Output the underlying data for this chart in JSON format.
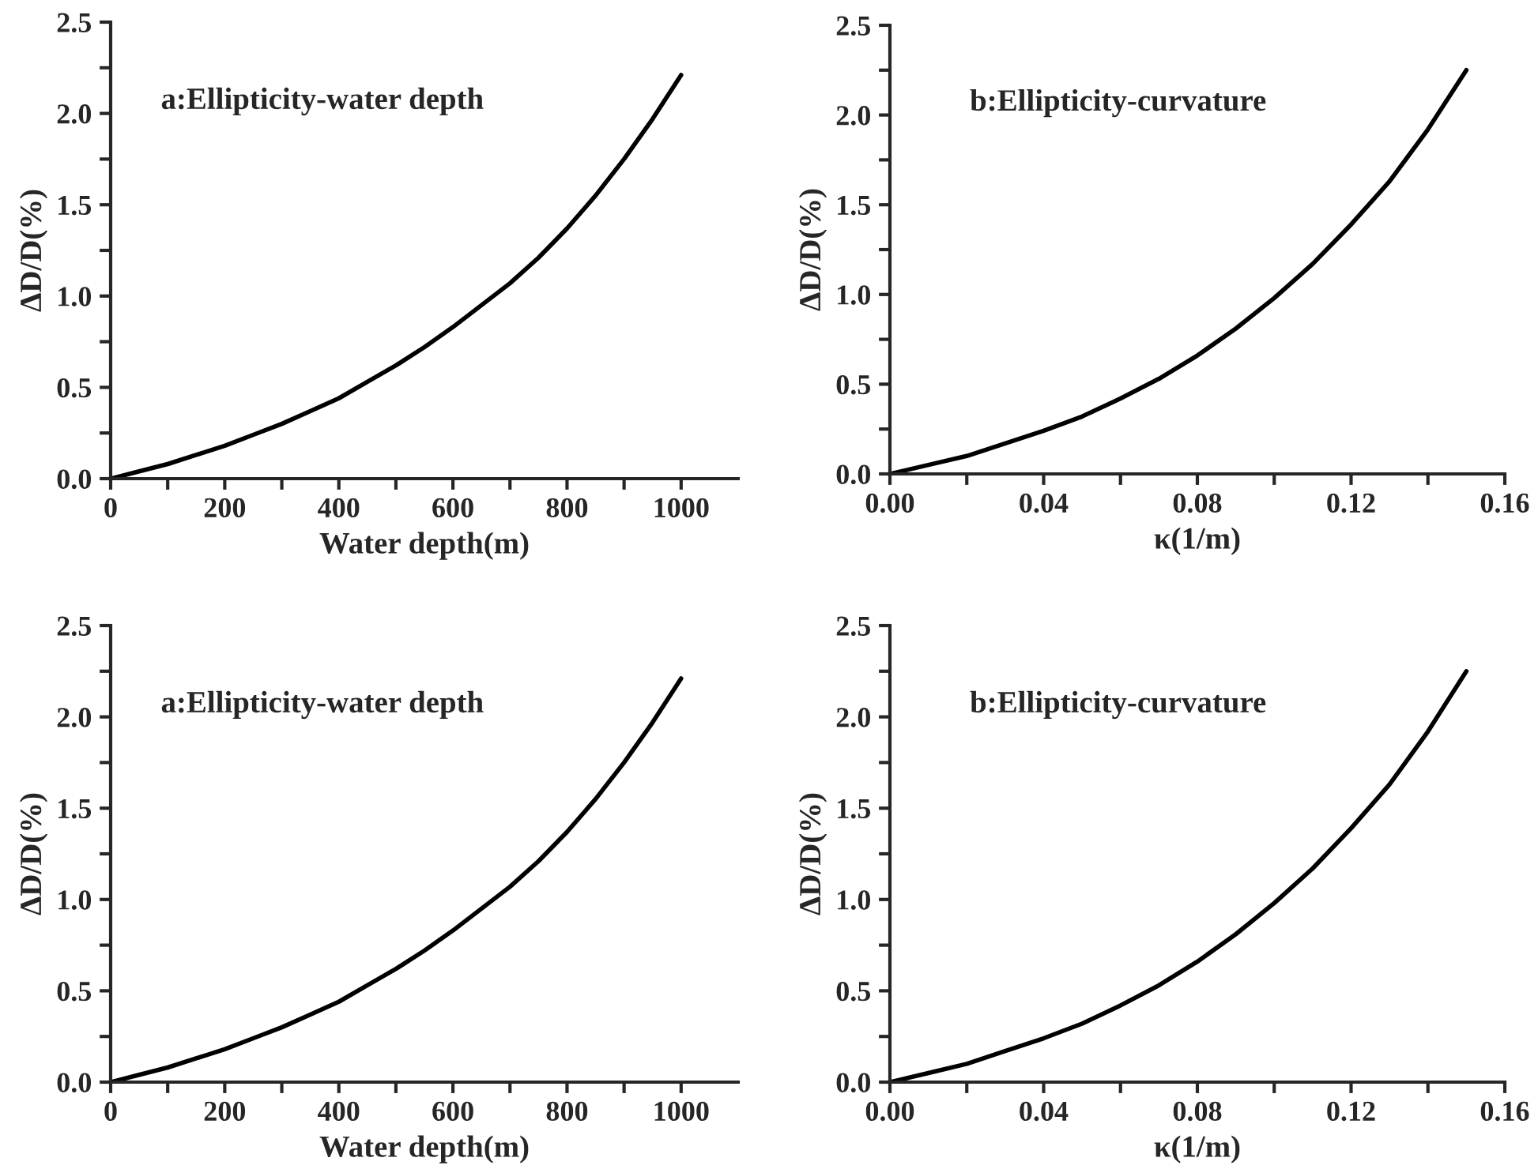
{
  "chart_data": [
    {
      "type": "line",
      "xlabel": "Water depth(m)",
      "ylabel": "ΔD/D(%)",
      "annotations": [
        "a:Ellipticity-water depth"
      ],
      "x": [
        0,
        50,
        100,
        150,
        200,
        250,
        300,
        350,
        400,
        450,
        500,
        550,
        600,
        650,
        700,
        750,
        800,
        850,
        900,
        950,
        1000
      ],
      "series": [
        {
          "color": "#000000",
          "values": [
            0,
            0.04,
            0.08,
            0.13,
            0.18,
            0.24,
            0.3,
            0.37,
            0.44,
            0.53,
            0.62,
            0.72,
            0.83,
            0.95,
            1.07,
            1.21,
            1.37,
            1.55,
            1.75,
            1.97,
            2.21
          ]
        }
      ],
      "xlim": [
        0,
        1100
      ],
      "xticks": [
        0,
        {
          "value": 100,
          "label": null
        },
        200,
        {
          "value": 300,
          "label": null
        },
        400,
        {
          "value": 500,
          "label": null
        },
        600,
        {
          "value": 700,
          "label": null
        },
        800,
        {
          "value": 900,
          "label": null
        },
        1000
      ],
      "ylim": [
        0,
        2.5
      ],
      "yticks": [
        {
          "value": 0,
          "label": "0.0"
        },
        {
          "value": 0.25,
          "label": null
        },
        {
          "value": 0.5,
          "label": "0.5"
        },
        {
          "value": 0.75,
          "label": null
        },
        {
          "value": 1.0,
          "label": "1.0"
        },
        {
          "value": 1.25,
          "label": null
        },
        {
          "value": 1.5,
          "label": "1.5"
        },
        {
          "value": 1.75,
          "label": null
        },
        {
          "value": 2.0,
          "label": "2.0"
        },
        {
          "value": 2.25,
          "label": null
        },
        {
          "value": 2.5,
          "label": "2.5"
        }
      ],
      "grid": false,
      "marker": "none",
      "line_style": "solid"
    },
    {
      "type": "line",
      "xlabel": "κ(1/m)",
      "ylabel": "ΔD/D(%)",
      "annotations": [
        "b:Ellipticity-curvature"
      ],
      "x": [
        0,
        0.01,
        0.02,
        0.03,
        0.04,
        0.05,
        0.06,
        0.07,
        0.08,
        0.09,
        0.1,
        0.11,
        0.12,
        0.13,
        0.14,
        0.15
      ],
      "series": [
        {
          "color": "#000000",
          "values": [
            0,
            0.05,
            0.1,
            0.17,
            0.24,
            0.32,
            0.42,
            0.53,
            0.66,
            0.81,
            0.98,
            1.17,
            1.39,
            1.63,
            1.92,
            2.25
          ]
        }
      ],
      "xlim": [
        0,
        0.16
      ],
      "xticks": [
        {
          "value": 0,
          "label": "0.00"
        },
        {
          "value": 0.02,
          "label": null
        },
        {
          "value": 0.04,
          "label": "0.04"
        },
        {
          "value": 0.06,
          "label": null
        },
        {
          "value": 0.08,
          "label": "0.08"
        },
        {
          "value": 0.1,
          "label": null
        },
        {
          "value": 0.12,
          "label": "0.12"
        },
        {
          "value": 0.14,
          "label": null
        },
        {
          "value": 0.16,
          "label": "0.16"
        }
      ],
      "ylim": [
        0,
        2.5
      ],
      "yticks": [
        {
          "value": 0,
          "label": "0.0"
        },
        {
          "value": 0.25,
          "label": null
        },
        {
          "value": 0.5,
          "label": "0.5"
        },
        {
          "value": 0.75,
          "label": null
        },
        {
          "value": 1.0,
          "label": "1.0"
        },
        {
          "value": 1.25,
          "label": null
        },
        {
          "value": 1.5,
          "label": "1.5"
        },
        {
          "value": 1.75,
          "label": null
        },
        {
          "value": 2.0,
          "label": "2.0"
        },
        {
          "value": 2.25,
          "label": null
        },
        {
          "value": 2.5,
          "label": "2.5"
        }
      ],
      "grid": false,
      "marker": "none",
      "line_style": "solid"
    },
    {
      "type": "line",
      "xlabel": "Water depth(m)",
      "ylabel": "ΔD/D(%)",
      "annotations": [
        "a:Ellipticity-water depth"
      ],
      "x": [
        0,
        50,
        100,
        150,
        200,
        250,
        300,
        350,
        400,
        450,
        500,
        550,
        600,
        650,
        700,
        750,
        800,
        850,
        900,
        950,
        1000
      ],
      "series": [
        {
          "color": "#000000",
          "values": [
            0,
            0.04,
            0.08,
            0.13,
            0.18,
            0.24,
            0.3,
            0.37,
            0.44,
            0.53,
            0.62,
            0.72,
            0.83,
            0.95,
            1.07,
            1.21,
            1.37,
            1.55,
            1.75,
            1.97,
            2.21
          ]
        }
      ],
      "xlim": [
        0,
        1100
      ],
      "xticks": [
        0,
        {
          "value": 100,
          "label": null
        },
        200,
        {
          "value": 300,
          "label": null
        },
        400,
        {
          "value": 500,
          "label": null
        },
        600,
        {
          "value": 700,
          "label": null
        },
        800,
        {
          "value": 900,
          "label": null
        },
        1000
      ],
      "ylim": [
        0,
        2.5
      ],
      "yticks": [
        {
          "value": 0,
          "label": "0.0"
        },
        {
          "value": 0.25,
          "label": null
        },
        {
          "value": 0.5,
          "label": "0.5"
        },
        {
          "value": 0.75,
          "label": null
        },
        {
          "value": 1.0,
          "label": "1.0"
        },
        {
          "value": 1.25,
          "label": null
        },
        {
          "value": 1.5,
          "label": "1.5"
        },
        {
          "value": 1.75,
          "label": null
        },
        {
          "value": 2.0,
          "label": "2.0"
        },
        {
          "value": 2.25,
          "label": null
        },
        {
          "value": 2.5,
          "label": "2.5"
        }
      ],
      "grid": false,
      "marker": "none",
      "line_style": "solid"
    },
    {
      "type": "line",
      "xlabel": "κ(1/m)",
      "ylabel": "ΔD/D(%)",
      "annotations": [
        "b:Ellipticity-curvature"
      ],
      "x": [
        0,
        0.01,
        0.02,
        0.03,
        0.04,
        0.05,
        0.06,
        0.07,
        0.08,
        0.09,
        0.1,
        0.11,
        0.12,
        0.13,
        0.14,
        0.15
      ],
      "series": [
        {
          "color": "#000000",
          "values": [
            0,
            0.05,
            0.1,
            0.17,
            0.24,
            0.32,
            0.42,
            0.53,
            0.66,
            0.81,
            0.98,
            1.17,
            1.39,
            1.63,
            1.92,
            2.25
          ]
        }
      ],
      "xlim": [
        0,
        0.16
      ],
      "xticks": [
        {
          "value": 0,
          "label": "0.00"
        },
        {
          "value": 0.02,
          "label": null
        },
        {
          "value": 0.04,
          "label": "0.04"
        },
        {
          "value": 0.06,
          "label": null
        },
        {
          "value": 0.08,
          "label": "0.08"
        },
        {
          "value": 0.1,
          "label": null
        },
        {
          "value": 0.12,
          "label": "0.12"
        },
        {
          "value": 0.14,
          "label": null
        },
        {
          "value": 0.16,
          "label": "0.16"
        }
      ],
      "ylim": [
        0,
        2.5
      ],
      "yticks": [
        {
          "value": 0,
          "label": "0.0"
        },
        {
          "value": 0.25,
          "label": null
        },
        {
          "value": 0.5,
          "label": "0.5"
        },
        {
          "value": 0.75,
          "label": null
        },
        {
          "value": 1.0,
          "label": "1.0"
        },
        {
          "value": 1.25,
          "label": null
        },
        {
          "value": 1.5,
          "label": "1.5"
        },
        {
          "value": 1.75,
          "label": null
        },
        {
          "value": 2.0,
          "label": "2.0"
        },
        {
          "value": 2.25,
          "label": null
        },
        {
          "value": 2.5,
          "label": "2.5"
        }
      ],
      "grid": false,
      "marker": "none",
      "line_style": "solid"
    }
  ]
}
